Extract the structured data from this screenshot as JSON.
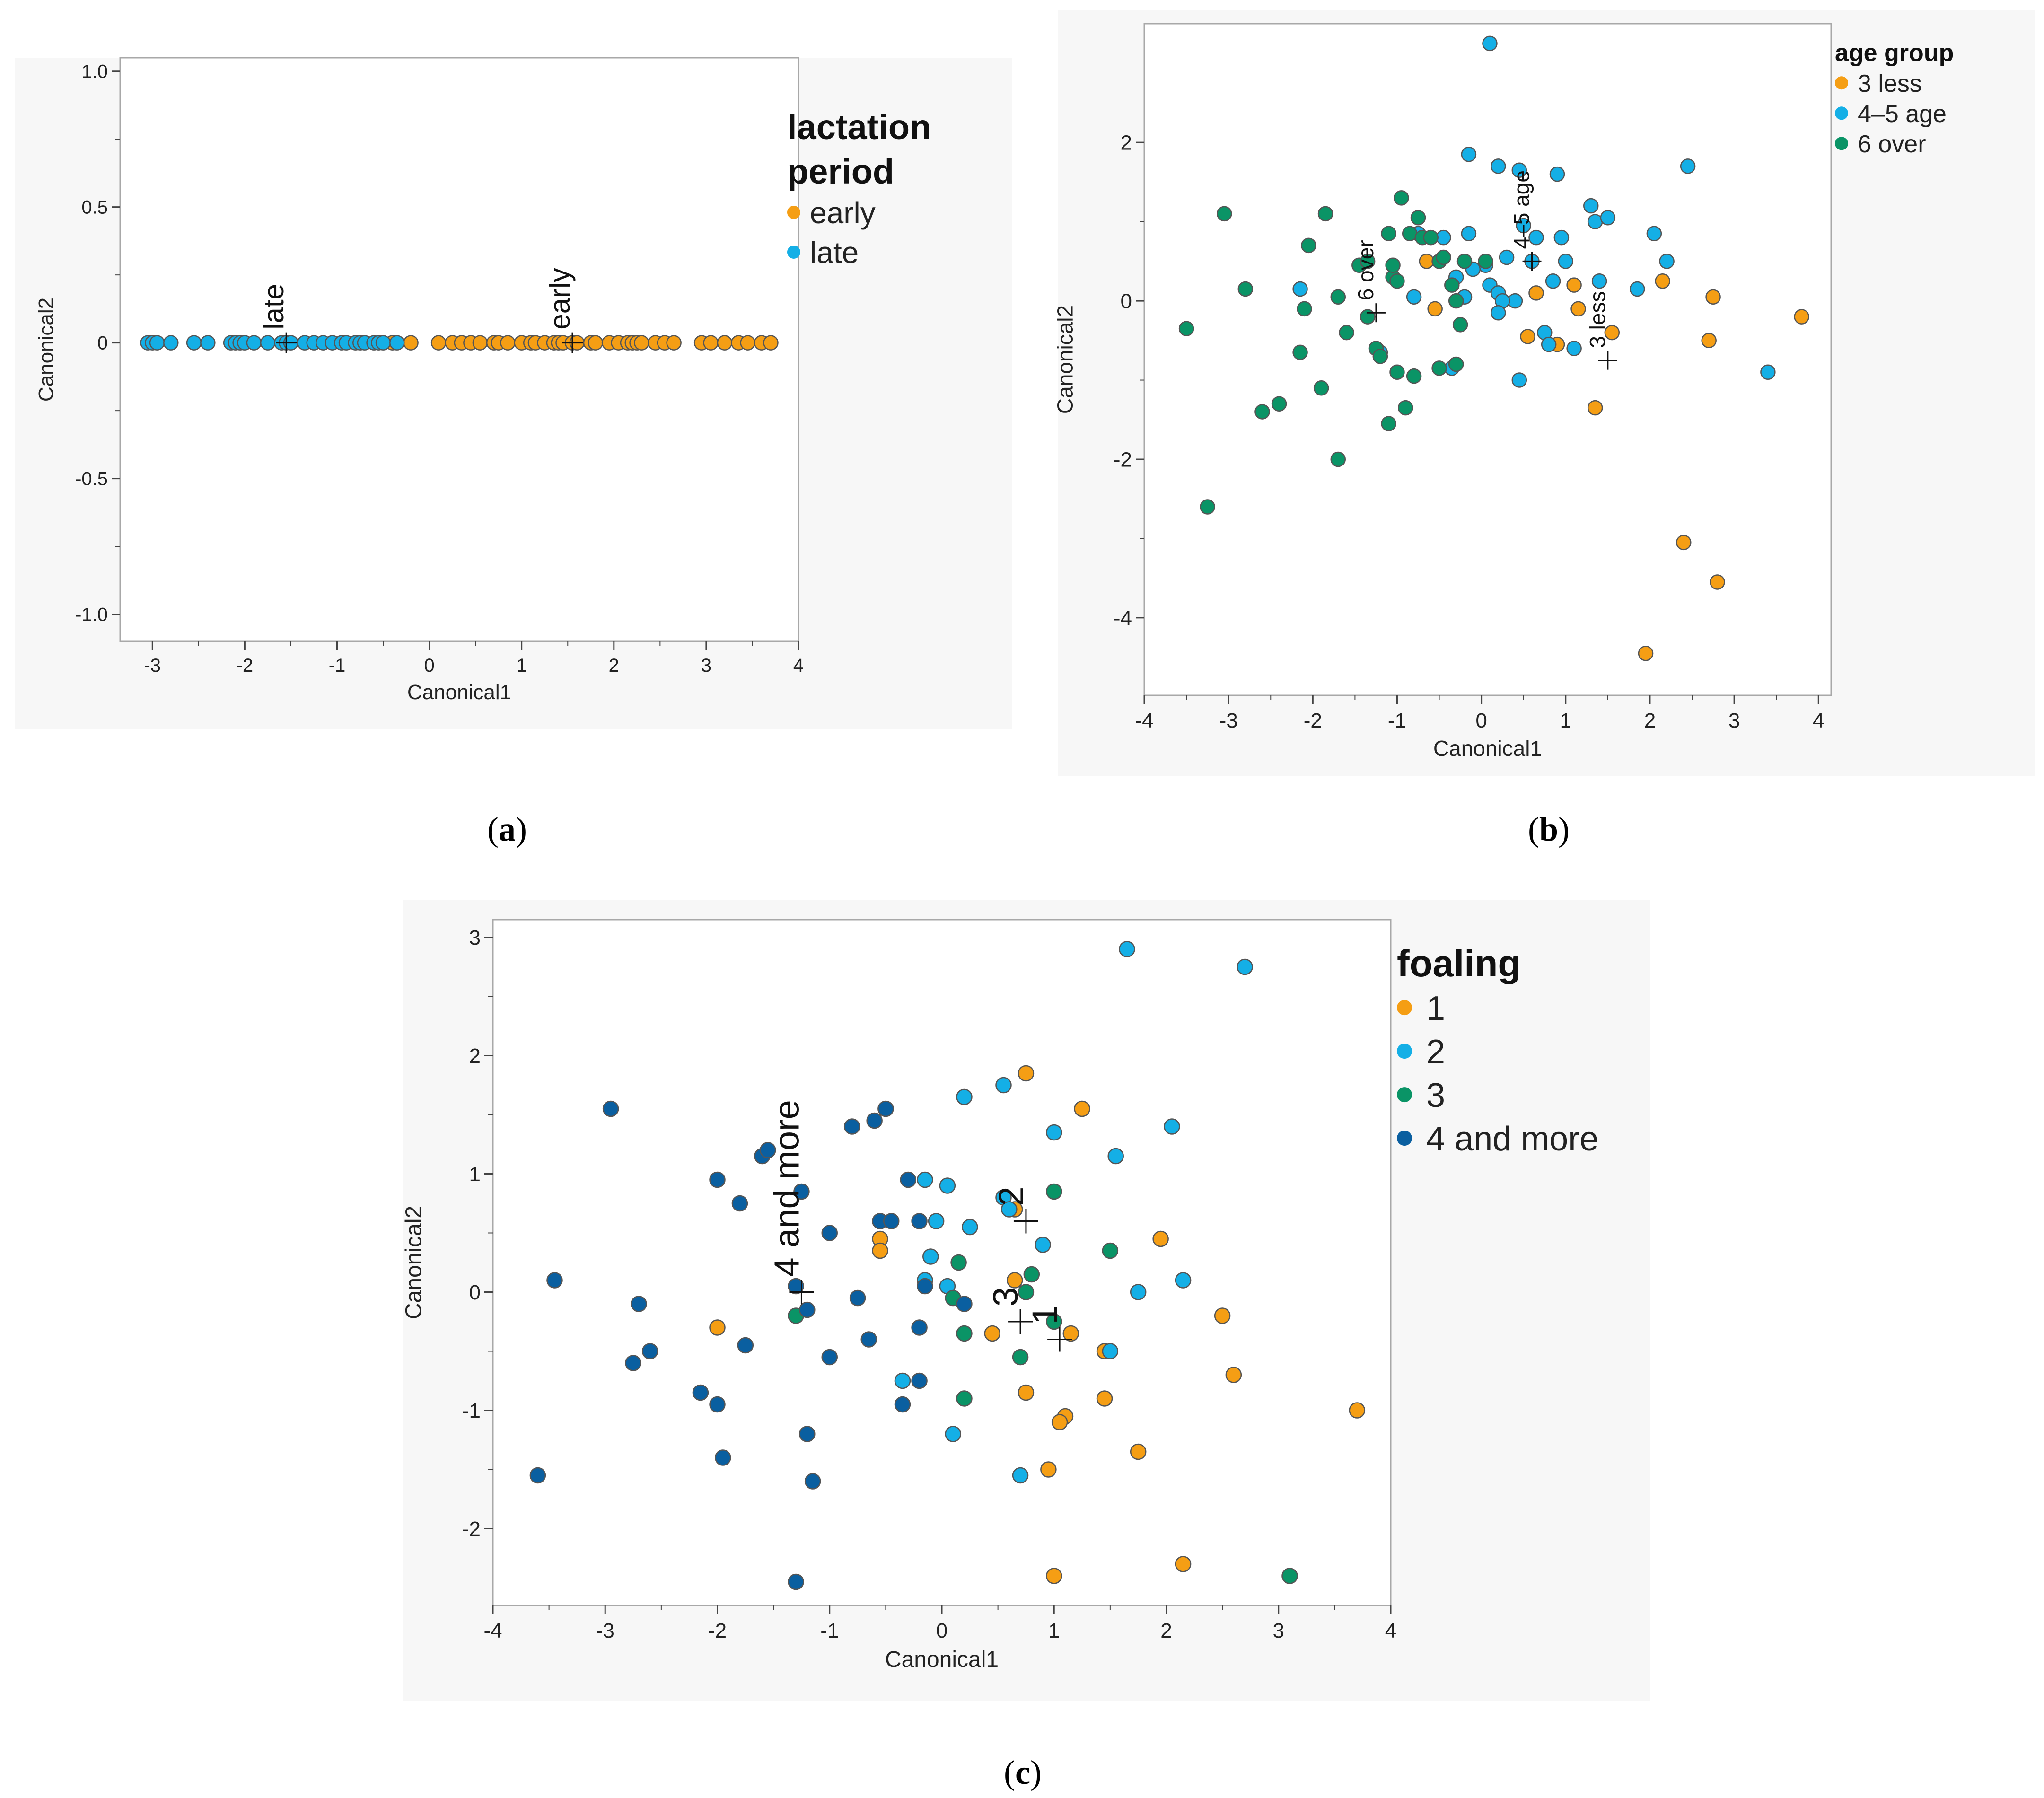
{
  "captions": {
    "a": {
      "open": "(",
      "letter": "a",
      "close": ")"
    },
    "b": {
      "open": "(",
      "letter": "b",
      "close": ")"
    },
    "c": {
      "open": "(",
      "letter": "c",
      "close": ")"
    }
  },
  "chart_data": [
    {
      "id": "a",
      "type": "scatter",
      "xlabel": "Canonical1",
      "ylabel": "Canonical2",
      "xlim": [
        -3.35,
        4.0
      ],
      "ylim": [
        -1.1,
        1.05
      ],
      "xticks": [
        -3,
        -2,
        -1,
        0,
        1,
        2,
        3,
        4
      ],
      "yticks": [
        -1.0,
        -0.5,
        0,
        0.5,
        1.0
      ],
      "ytick_labels": [
        "-1.0",
        "-0.5",
        "0",
        "0.5",
        "1.0"
      ],
      "grid": false,
      "legend": {
        "title_lines": [
          "lactation",
          "period"
        ],
        "placement": "right",
        "entries": [
          "early",
          "late"
        ]
      },
      "colors": {
        "early": "#f59e14",
        "late": "#14afe6"
      },
      "series": [
        {
          "name": "early",
          "color": "#f59e14",
          "x": [
            -0.4,
            -0.2,
            0.1,
            0.25,
            0.35,
            0.45,
            0.55,
            0.7,
            0.75,
            0.85,
            1.0,
            1.1,
            1.15,
            1.25,
            1.35,
            1.4,
            1.45,
            1.55,
            1.6,
            1.75,
            1.8,
            1.95,
            2.05,
            2.15,
            2.2,
            2.25,
            2.3,
            2.45,
            2.55,
            2.65,
            2.95,
            3.05,
            3.2,
            3.35,
            3.45,
            3.6,
            3.7
          ],
          "y": [
            0,
            0,
            0,
            0,
            0,
            0,
            0,
            0,
            0,
            0,
            0,
            0,
            0,
            0,
            0,
            0,
            0,
            0,
            0,
            0,
            0,
            0,
            0,
            0,
            0,
            0,
            0,
            0,
            0,
            0,
            0,
            0,
            0,
            0,
            0,
            0,
            0
          ]
        },
        {
          "name": "late",
          "color": "#14afe6",
          "x": [
            -3.05,
            -3.0,
            -2.95,
            -2.8,
            -2.55,
            -2.4,
            -2.15,
            -2.1,
            -2.05,
            -2.0,
            -1.9,
            -1.75,
            -1.6,
            -1.55,
            -1.5,
            -1.35,
            -1.25,
            -1.15,
            -1.05,
            -0.95,
            -0.9,
            -0.8,
            -0.75,
            -0.7,
            -0.6,
            -0.55,
            -0.5,
            -0.35
          ],
          "y": [
            0,
            0,
            0,
            0,
            0,
            0,
            0,
            0,
            0,
            0,
            0,
            0,
            0,
            0,
            0,
            0,
            0,
            0,
            0,
            0,
            0,
            0,
            0,
            0,
            0,
            0,
            0,
            0
          ]
        }
      ],
      "centroids": [
        {
          "label": "late",
          "x": -1.55,
          "y": 0
        },
        {
          "label": "early",
          "x": 1.55,
          "y": 0
        }
      ]
    },
    {
      "id": "b",
      "type": "scatter",
      "xlabel": "Canonical1",
      "ylabel": "Canonical2",
      "xlim": [
        -4,
        4.15
      ],
      "ylim": [
        -4.98,
        3.5
      ],
      "xticks": [
        -4,
        -3,
        -2,
        -1,
        0,
        1,
        2,
        3,
        4
      ],
      "yticks": [
        -4,
        -2,
        0,
        2
      ],
      "grid": false,
      "legend": {
        "title_lines": [
          "age group"
        ],
        "placement": "top-right",
        "entries": [
          "3 less",
          "4–5 age",
          "6 over"
        ]
      },
      "colors": {
        "3 less": "#f59e14",
        "4-5 age": "#14afe6",
        "6 over": "#0a9466"
      },
      "series": [
        {
          "name": "3 less",
          "color": "#f59e14",
          "x": [
            -0.65,
            -0.55,
            0.55,
            0.65,
            0.9,
            1.1,
            1.15,
            1.35,
            1.55,
            2.15,
            2.7,
            2.75,
            3.8,
            2.4,
            2.8,
            1.95
          ],
          "y": [
            0.5,
            -0.1,
            -0.45,
            0.1,
            -0.55,
            0.2,
            -0.1,
            -1.35,
            -0.4,
            0.25,
            -0.5,
            0.05,
            -0.2,
            -3.05,
            -3.55,
            -4.45
          ]
        },
        {
          "name": "4–5 age",
          "color": "#14afe6",
          "x": [
            0.1,
            -0.15,
            0.2,
            0.45,
            0.9,
            1.3,
            2.45,
            -0.75,
            -0.45,
            -0.15,
            0.05,
            0.3,
            0.65,
            0.95,
            1.35,
            1.5,
            -0.3,
            -0.1,
            0.1,
            0.2,
            0.4,
            0.6,
            0.85,
            1.0,
            1.4,
            1.85,
            2.05,
            2.2,
            -2.15,
            -0.2,
            0.25,
            0.75,
            1.1,
            -1.2,
            -0.35,
            0.45,
            0.8,
            3.4,
            -0.8,
            0.2,
            0.5
          ],
          "y": [
            3.25,
            1.85,
            1.7,
            1.65,
            1.6,
            1.2,
            1.7,
            0.85,
            0.8,
            0.85,
            0.45,
            0.55,
            0.8,
            0.8,
            1.0,
            1.05,
            0.3,
            0.4,
            0.2,
            0.1,
            0.0,
            0.5,
            0.25,
            0.5,
            0.25,
            0.15,
            0.85,
            0.5,
            0.15,
            0.05,
            0.0,
            -0.4,
            -0.6,
            -0.65,
            -0.85,
            -1.0,
            -0.55,
            -0.9,
            0.05,
            -0.15,
            0.95
          ]
        },
        {
          "name": "6 over",
          "color": "#0a9466",
          "x": [
            -3.5,
            -3.05,
            -2.8,
            -2.6,
            -2.4,
            -2.15,
            -2.05,
            -2.1,
            -1.85,
            -1.9,
            -1.7,
            -1.6,
            -1.45,
            -1.35,
            -1.25,
            -1.2,
            -1.1,
            -1.05,
            -1.0,
            -0.95,
            -0.85,
            -0.75,
            -0.7,
            -0.6,
            -0.5,
            -0.45,
            -0.35,
            -0.3,
            -0.25,
            -0.2,
            0.05,
            -1.1,
            -0.9,
            -0.8,
            -0.5,
            -0.3,
            -1.35,
            -1.05,
            -1.0,
            -1.7,
            -3.25
          ],
          "y": [
            -0.35,
            1.1,
            0.15,
            -1.4,
            -1.3,
            -0.65,
            0.7,
            -0.1,
            1.1,
            -1.1,
            0.05,
            -0.4,
            0.45,
            0.5,
            -0.6,
            -0.7,
            0.85,
            0.3,
            0.25,
            1.3,
            0.85,
            1.05,
            0.8,
            0.8,
            0.5,
            0.55,
            0.2,
            0.0,
            -0.3,
            0.5,
            0.5,
            -1.55,
            -1.35,
            -0.95,
            -0.85,
            -0.8,
            -0.2,
            0.45,
            -0.9,
            -2.0,
            -2.6
          ]
        }
      ],
      "centroids": [
        {
          "label": "6 over",
          "x": -1.25,
          "y": -0.15
        },
        {
          "label": "4–5 age",
          "x": 0.6,
          "y": 0.5
        },
        {
          "label": "3 less",
          "x": 1.5,
          "y": -0.75
        }
      ]
    },
    {
      "id": "c",
      "type": "scatter",
      "xlabel": "Canonical1",
      "ylabel": "Canonical2",
      "xlim": [
        -4,
        4
      ],
      "ylim": [
        -2.65,
        3.15
      ],
      "xticks": [
        -4,
        -3,
        -2,
        -1,
        0,
        1,
        2,
        3,
        4
      ],
      "yticks": [
        -2,
        -1,
        0,
        1,
        2,
        3
      ],
      "grid": false,
      "legend": {
        "title_lines": [
          "foaling"
        ],
        "placement": "right",
        "entries": [
          "1",
          "2",
          "3",
          "4 and more"
        ]
      },
      "colors": {
        "1": "#f59e14",
        "2": "#14afe6",
        "3": "#0a9466",
        "4 and more": "#0a5fa0"
      },
      "series": [
        {
          "name": "1",
          "color": "#f59e14",
          "x": [
            0.75,
            1.25,
            -0.55,
            -0.55,
            0.65,
            0.65,
            1.95,
            1.15,
            1.45,
            2.5,
            2.6,
            0.45,
            0.75,
            1.1,
            1.05,
            1.45,
            3.7,
            0.95,
            1.75,
            2.15,
            1.0,
            -2.0
          ],
          "y": [
            1.85,
            1.55,
            0.45,
            0.35,
            0.7,
            0.1,
            0.45,
            -0.35,
            -0.5,
            -0.2,
            -0.7,
            -0.35,
            -0.85,
            -1.05,
            -1.1,
            -0.9,
            -1.0,
            -1.5,
            -1.35,
            -2.3,
            -2.4,
            -0.3
          ]
        },
        {
          "name": "2",
          "color": "#14afe6",
          "x": [
            1.65,
            2.7,
            0.2,
            0.55,
            1.0,
            1.55,
            2.05,
            -0.15,
            0.05,
            0.55,
            0.6,
            -0.05,
            0.25,
            0.9,
            -0.1,
            0.05,
            -0.15,
            1.75,
            2.15,
            -0.35,
            0.1,
            0.7,
            1.5
          ],
          "y": [
            2.9,
            2.75,
            1.65,
            1.75,
            1.35,
            1.15,
            1.4,
            0.95,
            0.9,
            0.8,
            0.7,
            0.6,
            0.55,
            0.4,
            0.3,
            0.05,
            0.1,
            0.0,
            0.1,
            -0.75,
            -1.2,
            -1.55,
            -0.5
          ]
        },
        {
          "name": "3",
          "color": "#0a9466",
          "x": [
            1.0,
            1.5,
            0.15,
            0.1,
            0.8,
            0.75,
            -1.3,
            0.2,
            1.0,
            0.7,
            0.2,
            3.1
          ],
          "y": [
            0.85,
            0.35,
            0.25,
            -0.05,
            0.15,
            0.0,
            -0.2,
            -0.35,
            -0.25,
            -0.55,
            -0.9,
            -2.4
          ]
        },
        {
          "name": "4 and more",
          "color": "#0a5fa0",
          "x": [
            -2.95,
            -1.6,
            -1.55,
            -2.0,
            -1.8,
            -1.25,
            -0.8,
            -0.6,
            -0.5,
            -0.3,
            -0.55,
            -0.55,
            -0.45,
            -0.2,
            -1.0,
            -1.3,
            -2.7,
            -2.6,
            -2.75,
            -3.45,
            -1.75,
            -1.2,
            -1.0,
            -0.65,
            -0.75,
            -0.15,
            -0.2,
            -0.35,
            -2.15,
            -2.0,
            -1.95,
            -1.2,
            -1.15,
            -3.6,
            -1.3,
            -0.2,
            0.2
          ],
          "y": [
            1.55,
            1.15,
            1.2,
            0.95,
            0.75,
            0.85,
            1.4,
            1.45,
            1.55,
            0.95,
            0.6,
            0.6,
            0.6,
            0.6,
            0.5,
            0.05,
            -0.1,
            -0.5,
            -0.6,
            0.1,
            -0.45,
            -0.15,
            -0.55,
            -0.4,
            -0.05,
            0.05,
            -0.75,
            -0.95,
            -0.85,
            -0.95,
            -1.4,
            -1.2,
            -1.6,
            -1.55,
            -2.45,
            -0.3,
            -0.1
          ]
        }
      ],
      "centroids": [
        {
          "label": "4 and more",
          "x": -1.25,
          "y": 0.0
        },
        {
          "label": "2",
          "x": 0.75,
          "y": 0.6
        },
        {
          "label": "3",
          "x": 0.7,
          "y": -0.25
        },
        {
          "label": "1",
          "x": 1.05,
          "y": -0.4
        }
      ]
    }
  ]
}
